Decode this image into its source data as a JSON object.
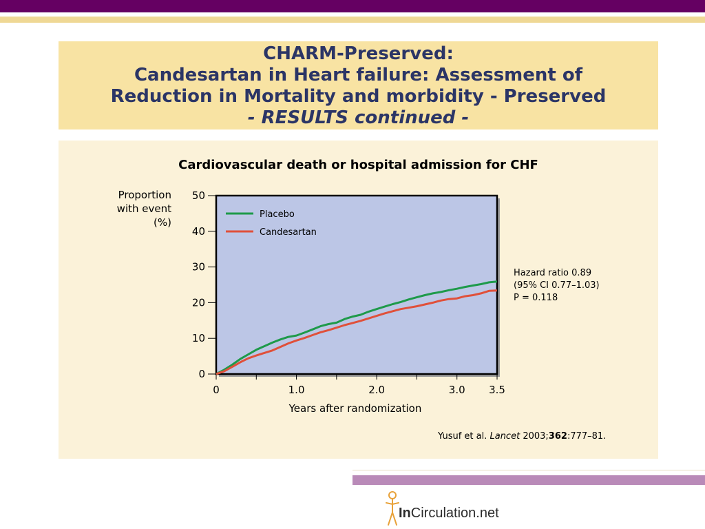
{
  "header": {
    "line1": "CHARM-Preserved:",
    "line2": "Candesartan in Heart failure: Assessment of",
    "line3": "Reduction in Mortality and morbidity - Preserved",
    "line4": "- RESULTS continued -"
  },
  "colors": {
    "purple_band": "#650062",
    "gold_band": "#efd895",
    "title_bg": "#f8e3a3",
    "title_text": "#2b3566",
    "content_bg": "#fbf2d9",
    "plot_bg": "#bcc6e6",
    "placebo": "#1e9a4a",
    "candesartan": "#e0503a",
    "lavender_band": "#b98ab8"
  },
  "chart_data": {
    "type": "line",
    "title": "Cardiovascular death or hospital admission for CHF",
    "ylabel_lines": [
      "Proportion",
      "with event",
      "(%)"
    ],
    "xlabel": "Years after randomization",
    "xlim": [
      0,
      3.5
    ],
    "ylim": [
      0,
      50
    ],
    "x_tick_values": [
      0,
      0.5,
      1.0,
      1.5,
      2.0,
      2.5,
      3.0,
      3.5
    ],
    "x_tick_labels": [
      {
        "value": 0,
        "label": "0"
      },
      {
        "value": 1.0,
        "label": "1.0"
      },
      {
        "value": 2.0,
        "label": "2.0"
      },
      {
        "value": 3.0,
        "label": "3.0"
      },
      {
        "value": 3.5,
        "label": "3.5"
      }
    ],
    "y_ticks": [
      {
        "value": 0,
        "label": "0"
      },
      {
        "value": 10,
        "label": "10"
      },
      {
        "value": 20,
        "label": "20"
      },
      {
        "value": 30,
        "label": "30"
      },
      {
        "value": 40,
        "label": "40"
      },
      {
        "value": 50,
        "label": "50"
      }
    ],
    "grid": false,
    "legend_position": "top-left",
    "series": [
      {
        "name": "Placebo",
        "x": [
          0,
          0.1,
          0.2,
          0.3,
          0.4,
          0.5,
          0.6,
          0.7,
          0.8,
          0.9,
          1.0,
          1.1,
          1.2,
          1.3,
          1.4,
          1.5,
          1.6,
          1.7,
          1.8,
          1.9,
          2.0,
          2.1,
          2.2,
          2.3,
          2.4,
          2.5,
          2.6,
          2.7,
          2.8,
          2.9,
          3.0,
          3.1,
          3.2,
          3.3,
          3.4,
          3.5
        ],
        "y": [
          0,
          1.2,
          2.6,
          4.2,
          5.5,
          6.8,
          7.8,
          8.8,
          9.7,
          10.4,
          10.8,
          11.6,
          12.5,
          13.4,
          14.0,
          14.4,
          15.4,
          16.1,
          16.6,
          17.5,
          18.2,
          18.9,
          19.6,
          20.2,
          20.9,
          21.5,
          22.1,
          22.6,
          23.0,
          23.5,
          23.9,
          24.4,
          24.8,
          25.2,
          25.7,
          25.9
        ]
      },
      {
        "name": "Candesartan",
        "x": [
          0,
          0.1,
          0.2,
          0.3,
          0.4,
          0.5,
          0.6,
          0.7,
          0.8,
          0.9,
          1.0,
          1.1,
          1.2,
          1.3,
          1.4,
          1.5,
          1.6,
          1.7,
          1.8,
          1.9,
          2.0,
          2.1,
          2.2,
          2.3,
          2.4,
          2.5,
          2.6,
          2.7,
          2.8,
          2.9,
          3.0,
          3.1,
          3.2,
          3.3,
          3.4,
          3.5
        ],
        "y": [
          0,
          0.8,
          2.0,
          3.3,
          4.4,
          5.2,
          5.9,
          6.6,
          7.6,
          8.6,
          9.4,
          10.1,
          10.9,
          11.7,
          12.3,
          13.0,
          13.7,
          14.3,
          14.9,
          15.6,
          16.3,
          17.0,
          17.6,
          18.2,
          18.6,
          19.0,
          19.5,
          20.0,
          20.6,
          21.0,
          21.2,
          21.8,
          22.1,
          22.6,
          23.3,
          23.4
        ]
      }
    ]
  },
  "stats": {
    "line1": "Hazard ratio 0.89",
    "line2": "(95% CI 0.77–1.03)",
    "line3": "P = 0.118"
  },
  "citation": {
    "authors": "Yusuf et al. ",
    "journal": "Lancet",
    "year": " 2003;",
    "volume": "362",
    "pages": ":777–81."
  },
  "logo": {
    "prefix": "In",
    "rest": "Circulation.net"
  }
}
